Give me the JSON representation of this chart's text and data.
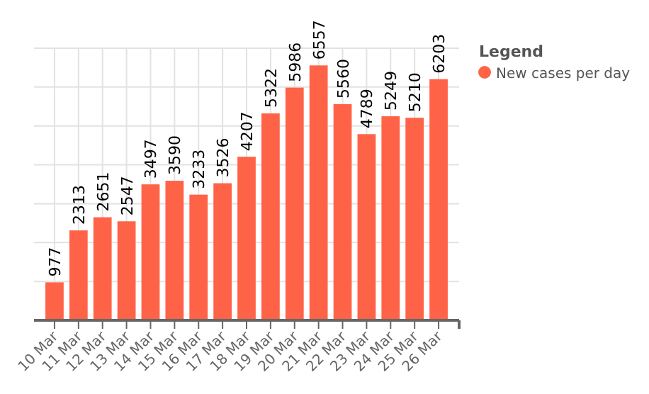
{
  "chart_data": {
    "type": "bar",
    "legend_title": "Legend",
    "categories": [
      "10 Mar",
      "11 Mar",
      "12 Mar",
      "13 Mar",
      "14 Mar",
      "15 Mar",
      "16 Mar",
      "17 Mar",
      "18 Mar",
      "19 Mar",
      "20 Mar",
      "21 Mar",
      "22 Mar",
      "23 Mar",
      "24 Mar",
      "25 Mar",
      "26 Mar"
    ],
    "series": [
      {
        "name": "New cases per day",
        "color": "#ff6347",
        "values": [
          977,
          2313,
          2651,
          2547,
          3497,
          3590,
          3233,
          3526,
          4207,
          5322,
          5986,
          6557,
          5560,
          4789,
          5249,
          5210,
          6203
        ]
      }
    ],
    "ylim": [
      0,
      7000
    ],
    "yticks": [
      {
        "value": 0,
        "label": null
      },
      {
        "value": 1000,
        "label": null
      },
      {
        "value": 2000,
        "label": null
      },
      {
        "value": 3000,
        "label": null
      },
      {
        "value": 4000,
        "label": null
      },
      {
        "value": 5000,
        "label": null
      },
      {
        "value": 6000,
        "label": null
      },
      {
        "value": 7000,
        "label": null
      }
    ],
    "grid": true,
    "data_labels": true,
    "legend": "top right"
  }
}
